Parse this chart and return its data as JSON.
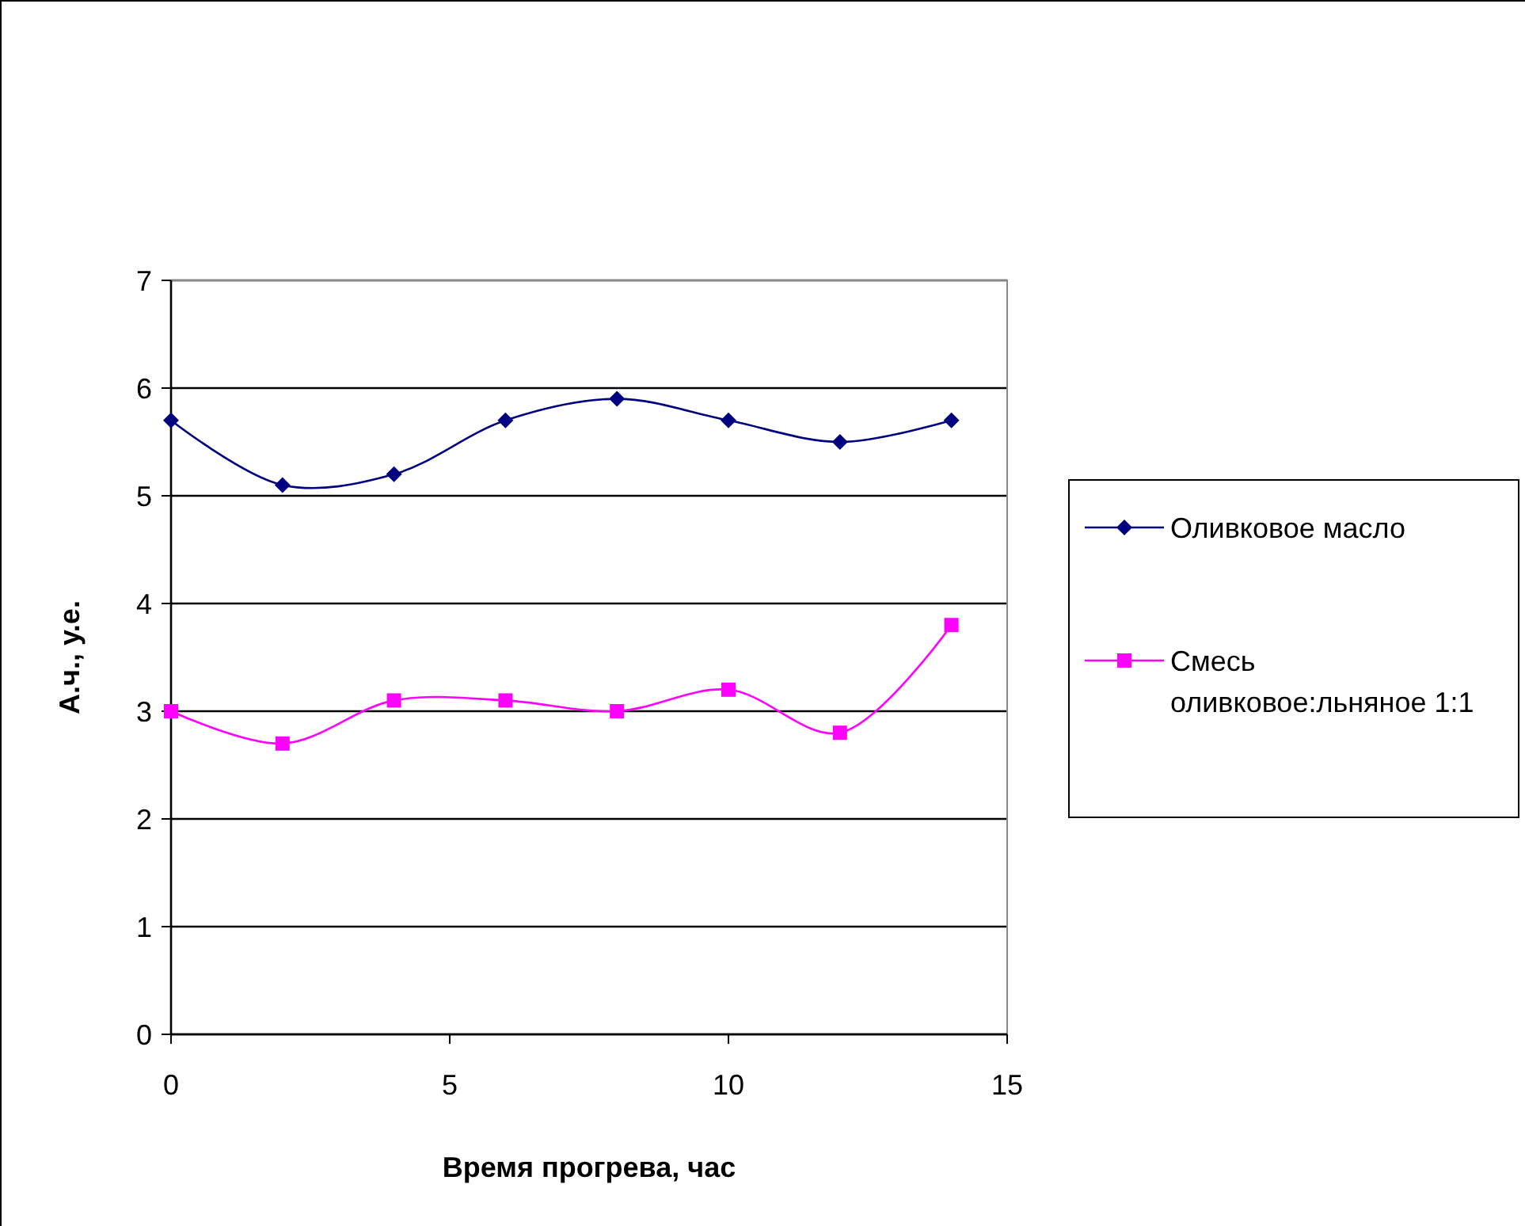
{
  "chart_data": {
    "type": "line",
    "xlabel": "Время прогрева, час",
    "ylabel": "А.ч., у.е.",
    "x": [
      0,
      2,
      4,
      6,
      8,
      10,
      12,
      14
    ],
    "series": [
      {
        "name": "Оливковое масло",
        "color": "#000080",
        "marker": "diamond",
        "values": [
          5.7,
          5.1,
          5.2,
          5.7,
          5.9,
          5.7,
          5.5,
          5.7
        ]
      },
      {
        "name": "Смесь оливковое:льняное 1:1",
        "color": "#ff00ff",
        "marker": "square",
        "values": [
          3.0,
          2.7,
          3.1,
          3.1,
          3.0,
          3.2,
          2.8,
          3.8
        ]
      }
    ],
    "xlim": [
      0,
      15
    ],
    "xticks": [
      0,
      5,
      10,
      15
    ],
    "ylim": [
      0,
      7
    ],
    "yticks": [
      0,
      1,
      2,
      3,
      4,
      5,
      6,
      7
    ],
    "grid": "y",
    "legend": "right",
    "line_style": "solid"
  }
}
